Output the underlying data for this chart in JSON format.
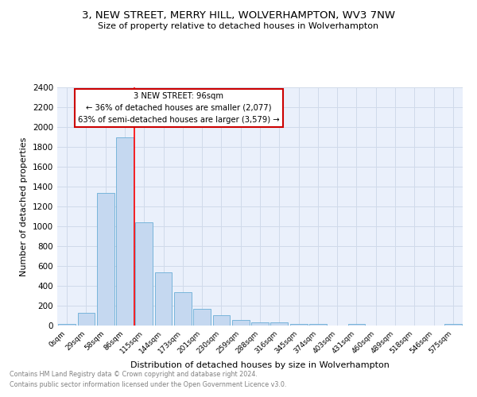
{
  "title": "3, NEW STREET, MERRY HILL, WOLVERHAMPTON, WV3 7NW",
  "subtitle": "Size of property relative to detached houses in Wolverhampton",
  "xlabel": "Distribution of detached houses by size in Wolverhampton",
  "ylabel": "Number of detached properties",
  "footnote1": "Contains HM Land Registry data © Crown copyright and database right 2024.",
  "footnote2": "Contains public sector information licensed under the Open Government Licence v3.0.",
  "bar_labels": [
    "0sqm",
    "29sqm",
    "58sqm",
    "86sqm",
    "115sqm",
    "144sqm",
    "173sqm",
    "201sqm",
    "230sqm",
    "259sqm",
    "288sqm",
    "316sqm",
    "345sqm",
    "374sqm",
    "403sqm",
    "431sqm",
    "460sqm",
    "489sqm",
    "518sqm",
    "546sqm",
    "575sqm"
  ],
  "bar_values": [
    20,
    130,
    1340,
    1900,
    1040,
    540,
    340,
    165,
    105,
    55,
    35,
    30,
    20,
    15,
    0,
    20,
    0,
    0,
    0,
    0,
    20
  ],
  "bar_color": "#c5d8f0",
  "bar_edge_color": "#6aaed6",
  "ylim": [
    0,
    2400
  ],
  "yticks": [
    0,
    200,
    400,
    600,
    800,
    1000,
    1200,
    1400,
    1600,
    1800,
    2000,
    2200,
    2400
  ],
  "red_line_x": 3.5,
  "annotation_title": "3 NEW STREET: 96sqm",
  "annotation_line1": "← 36% of detached houses are smaller (2,077)",
  "annotation_line2": "63% of semi-detached houses are larger (3,579) →",
  "annotation_box_color": "#ffffff",
  "annotation_box_edge": "#cc0000",
  "grid_color": "#d0daea",
  "background_color": "#eaf0fb"
}
